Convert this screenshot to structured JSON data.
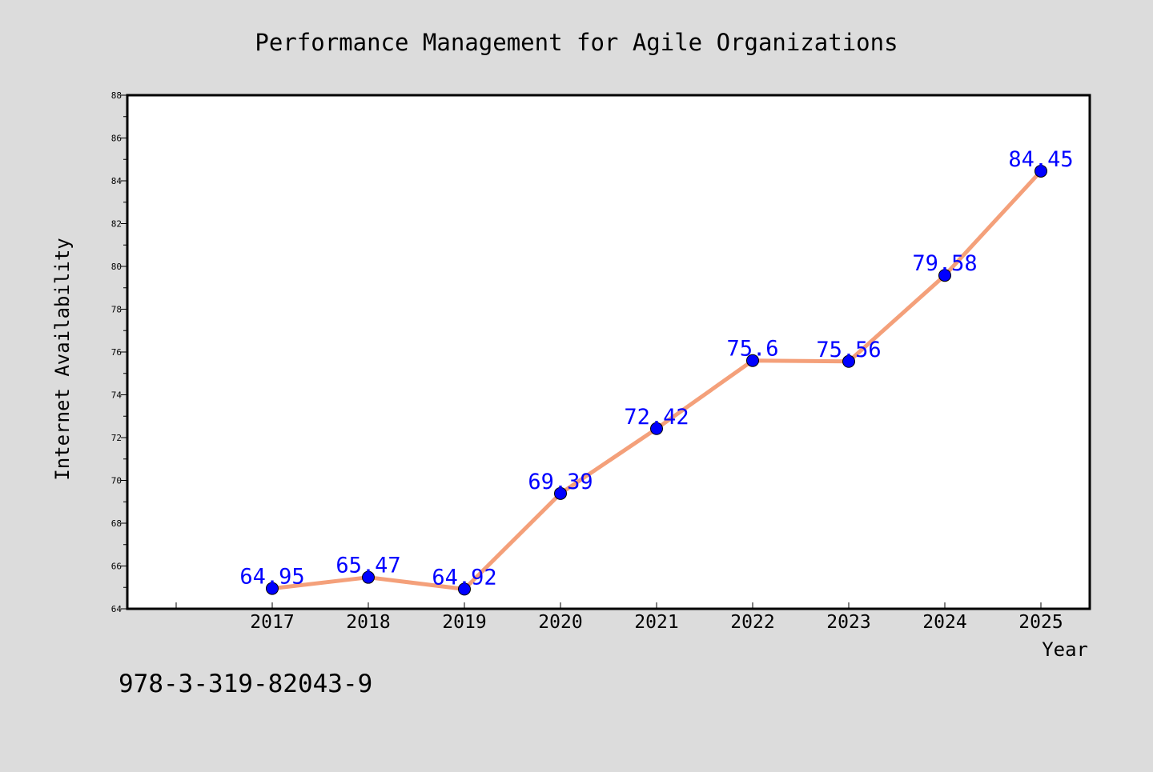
{
  "chart_data": {
    "type": "line",
    "title": "Performance Management for Agile Organizations",
    "xlabel": "Year",
    "ylabel": "Internet Availability",
    "categories": [
      "2017",
      "2018",
      "2019",
      "2020",
      "2021",
      "2022",
      "2023",
      "2024",
      "2025"
    ],
    "series": [
      {
        "values": [
          64.95,
          65.47,
          64.92,
          69.39,
          72.42,
          75.6,
          75.56,
          79.58,
          84.45
        ],
        "data_labels": [
          "64.95",
          "65.47",
          "64.92",
          "69.39",
          "72.42",
          "75.6",
          "75.56",
          "79.58",
          "84.45"
        ]
      }
    ],
    "ylim": [
      64,
      88
    ],
    "yticks": [
      "64",
      "66",
      "68",
      "70",
      "72",
      "74",
      "76",
      "78",
      "80",
      "82",
      "84",
      "86",
      "88"
    ],
    "grid": false,
    "legend": "none",
    "colors": {
      "line": "#f4a07a",
      "marker": "#0000ff",
      "data_label": "#0000ff",
      "background": "#dcdcdc",
      "plot_area": "#ffffff"
    }
  },
  "footer_text": "978-3-319-82043-9"
}
